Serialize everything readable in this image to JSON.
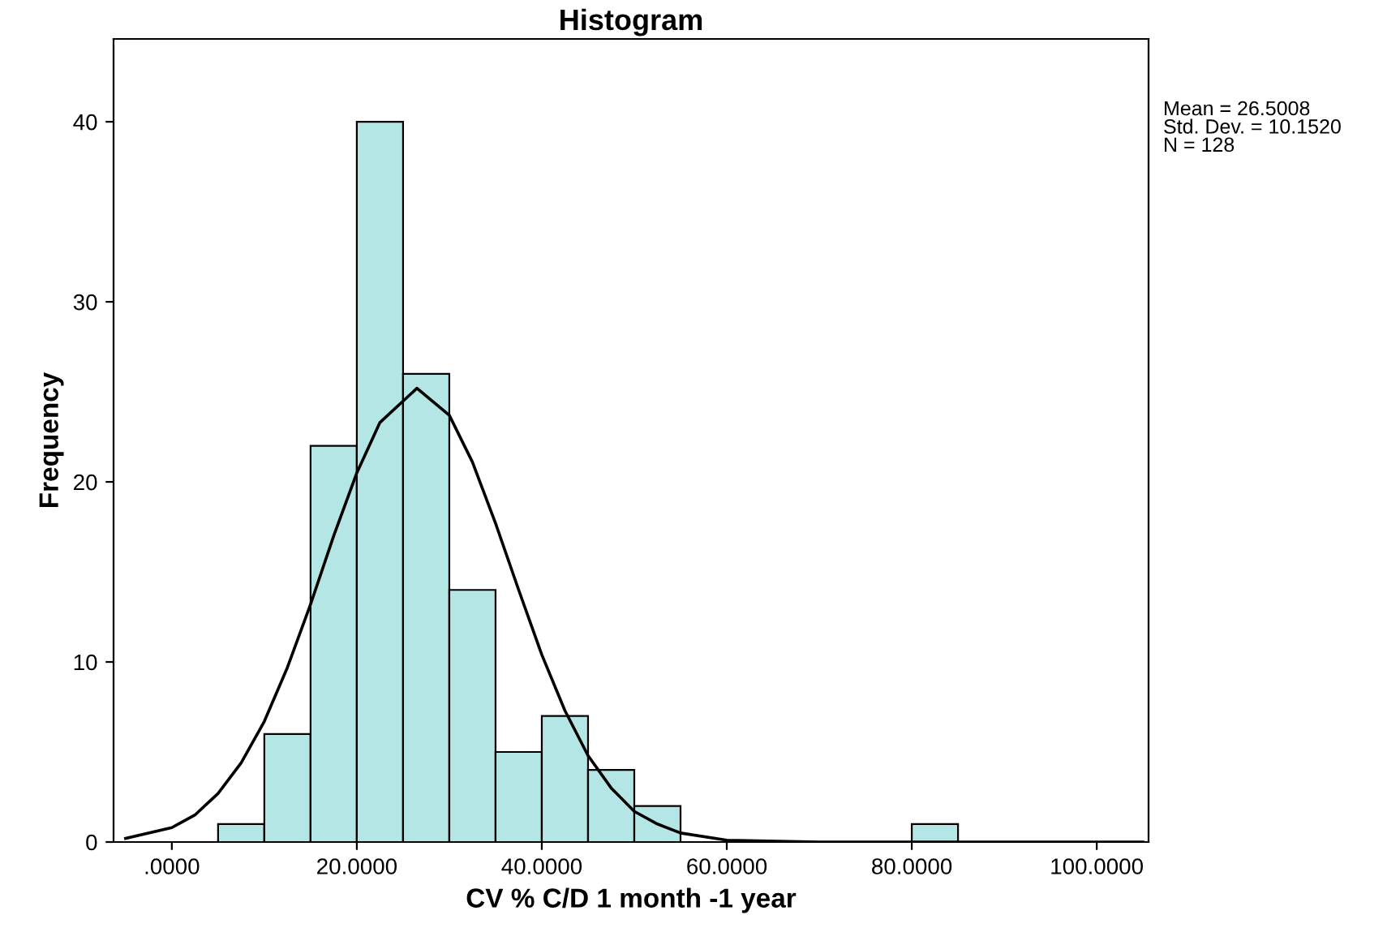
{
  "chart_data": {
    "type": "histogram",
    "title": "Histogram",
    "xlabel": "CV % C/D 1 month -1 year",
    "ylabel": "Frequency",
    "bins": [
      5,
      10,
      15,
      20,
      25,
      30,
      35,
      40,
      45,
      50,
      55,
      80,
      85
    ],
    "values": [
      1,
      6,
      22,
      40,
      26,
      14,
      5,
      7,
      4,
      2,
      0,
      1
    ],
    "color": "#b4e6e6",
    "series": [
      {
        "type": "line",
        "color": "#000000",
        "x": [
          -5,
          0,
          2.5,
          5,
          7.5,
          10,
          12.5,
          15,
          17.5,
          20,
          22.5,
          26.5,
          30,
          32.5,
          35,
          37.5,
          40,
          42.5,
          45,
          47.5,
          50,
          52.5,
          55,
          60,
          70,
          80,
          105
        ],
        "values": [
          0.2,
          0.8,
          1.5,
          2.7,
          4.4,
          6.7,
          9.7,
          13.2,
          17,
          20.5,
          23.3,
          25.2,
          23.7,
          21.1,
          17.7,
          14,
          10.4,
          7.3,
          4.8,
          3,
          1.7,
          1,
          0.5,
          0.1,
          0,
          0,
          0
        ]
      }
    ],
    "xlim": [
      -6.3,
      105.6
    ],
    "ylim": [
      0,
      44.6
    ],
    "xticks": [
      {
        "value": 0,
        "label": ".0000"
      },
      {
        "value": 20,
        "label": "20.0000"
      },
      {
        "value": 40,
        "label": "40.0000"
      },
      {
        "value": 60,
        "label": "60.0000"
      },
      {
        "value": 80,
        "label": "80.0000"
      },
      {
        "value": 100,
        "label": "100.0000"
      }
    ],
    "yticks": [
      0,
      10,
      20,
      30,
      40
    ],
    "grid": false,
    "legend": false,
    "annotations": [
      "Mean = 26.5008\nStd. Dev. = 10.1520\nN = 128"
    ]
  }
}
